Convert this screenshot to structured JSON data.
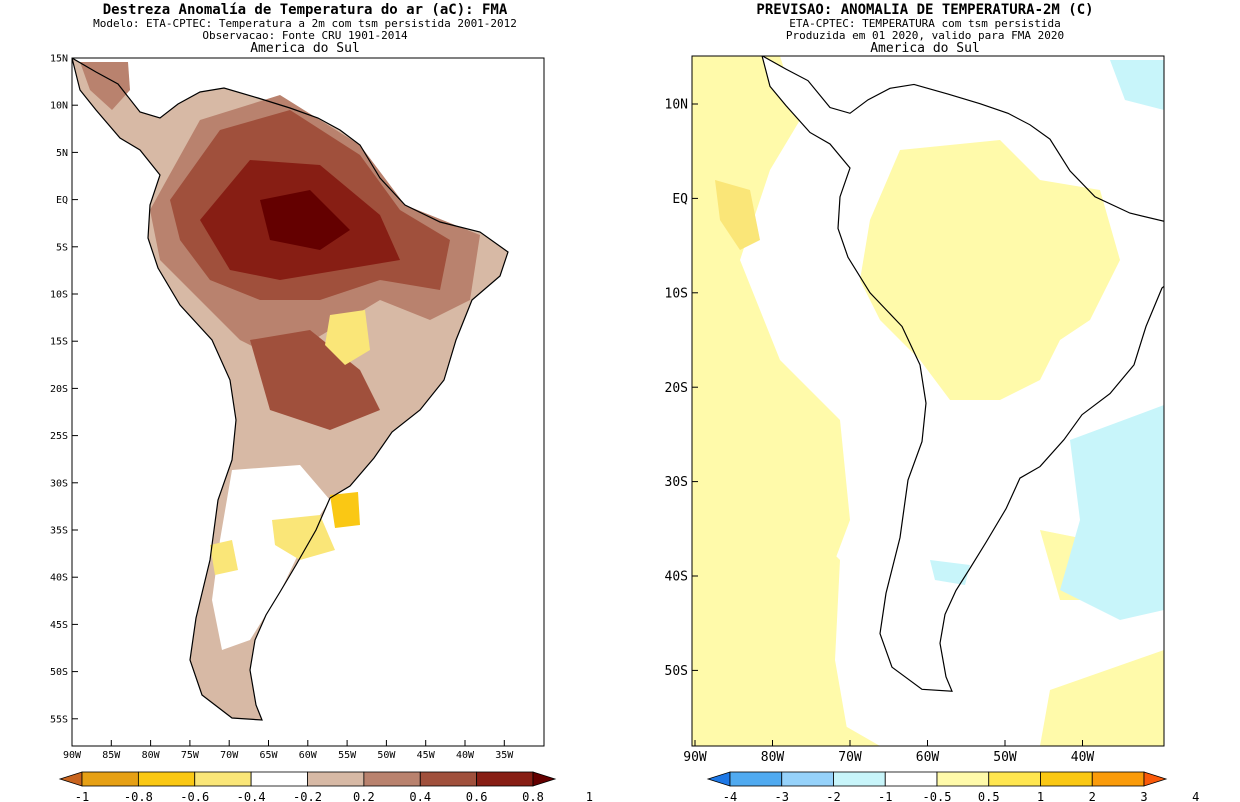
{
  "left_panel": {
    "title": "Destreza Anomalía de Temperatura do ar (aC): FMA",
    "subtitle1": "Modelo: ETA-CPTEC: Temperatura a 2m com tsm persistida 2001-2012",
    "subtitle2": "Observacao: Fonte CRU 1901-2014",
    "region": "America do Sul",
    "lat_labels": [
      "15N",
      "10N",
      "5N",
      "EQ",
      "5S",
      "10S",
      "15S",
      "20S",
      "25S",
      "30S",
      "35S",
      "40S",
      "45S",
      "50S",
      "55S"
    ],
    "lon_labels": [
      "90W",
      "85W",
      "80W",
      "75W",
      "70W",
      "65W",
      "60W",
      "55W",
      "50W",
      "45W",
      "40W",
      "35W"
    ],
    "colorbar": {
      "labels": [
        "-1",
        "-0.8",
        "-0.6",
        "-0.4",
        "-0.2",
        "0.2",
        "0.4",
        "0.6",
        "0.8",
        "1"
      ],
      "colors": [
        "#c8641e",
        "#e6a014",
        "#fac814",
        "#fae678",
        "#ffffff",
        "#d7b9a5",
        "#b9826e",
        "#a0503c",
        "#871e14",
        "#640000"
      ]
    }
  },
  "right_panel": {
    "title": "PREVISAO: ANOMALIA DE TEMPERATURA-2M (C)",
    "subtitle1": "ETA-CPTEC: TEMPERATURA com tsm persistida",
    "subtitle2": "Produzida em 01 2020, valido para FMA 2020",
    "region": "America do Sul",
    "lat_labels": [
      "10N",
      "EQ",
      "10S",
      "20S",
      "30S",
      "40S",
      "50S"
    ],
    "lon_labels": [
      "90W",
      "80W",
      "70W",
      "60W",
      "50W",
      "40W"
    ],
    "colorbar": {
      "labels": [
        "-4",
        "-3",
        "-2",
        "-1",
        "-0.5",
        "0.5",
        "1",
        "2",
        "3",
        "4"
      ],
      "colors": [
        "#1e78e6",
        "#50aaf0",
        "#96d2fa",
        "#c8f5fa",
        "#ffffff",
        "#fffaaa",
        "#ffe650",
        "#fac814",
        "#fa9b0a",
        "#fa5a0a"
      ]
    }
  }
}
